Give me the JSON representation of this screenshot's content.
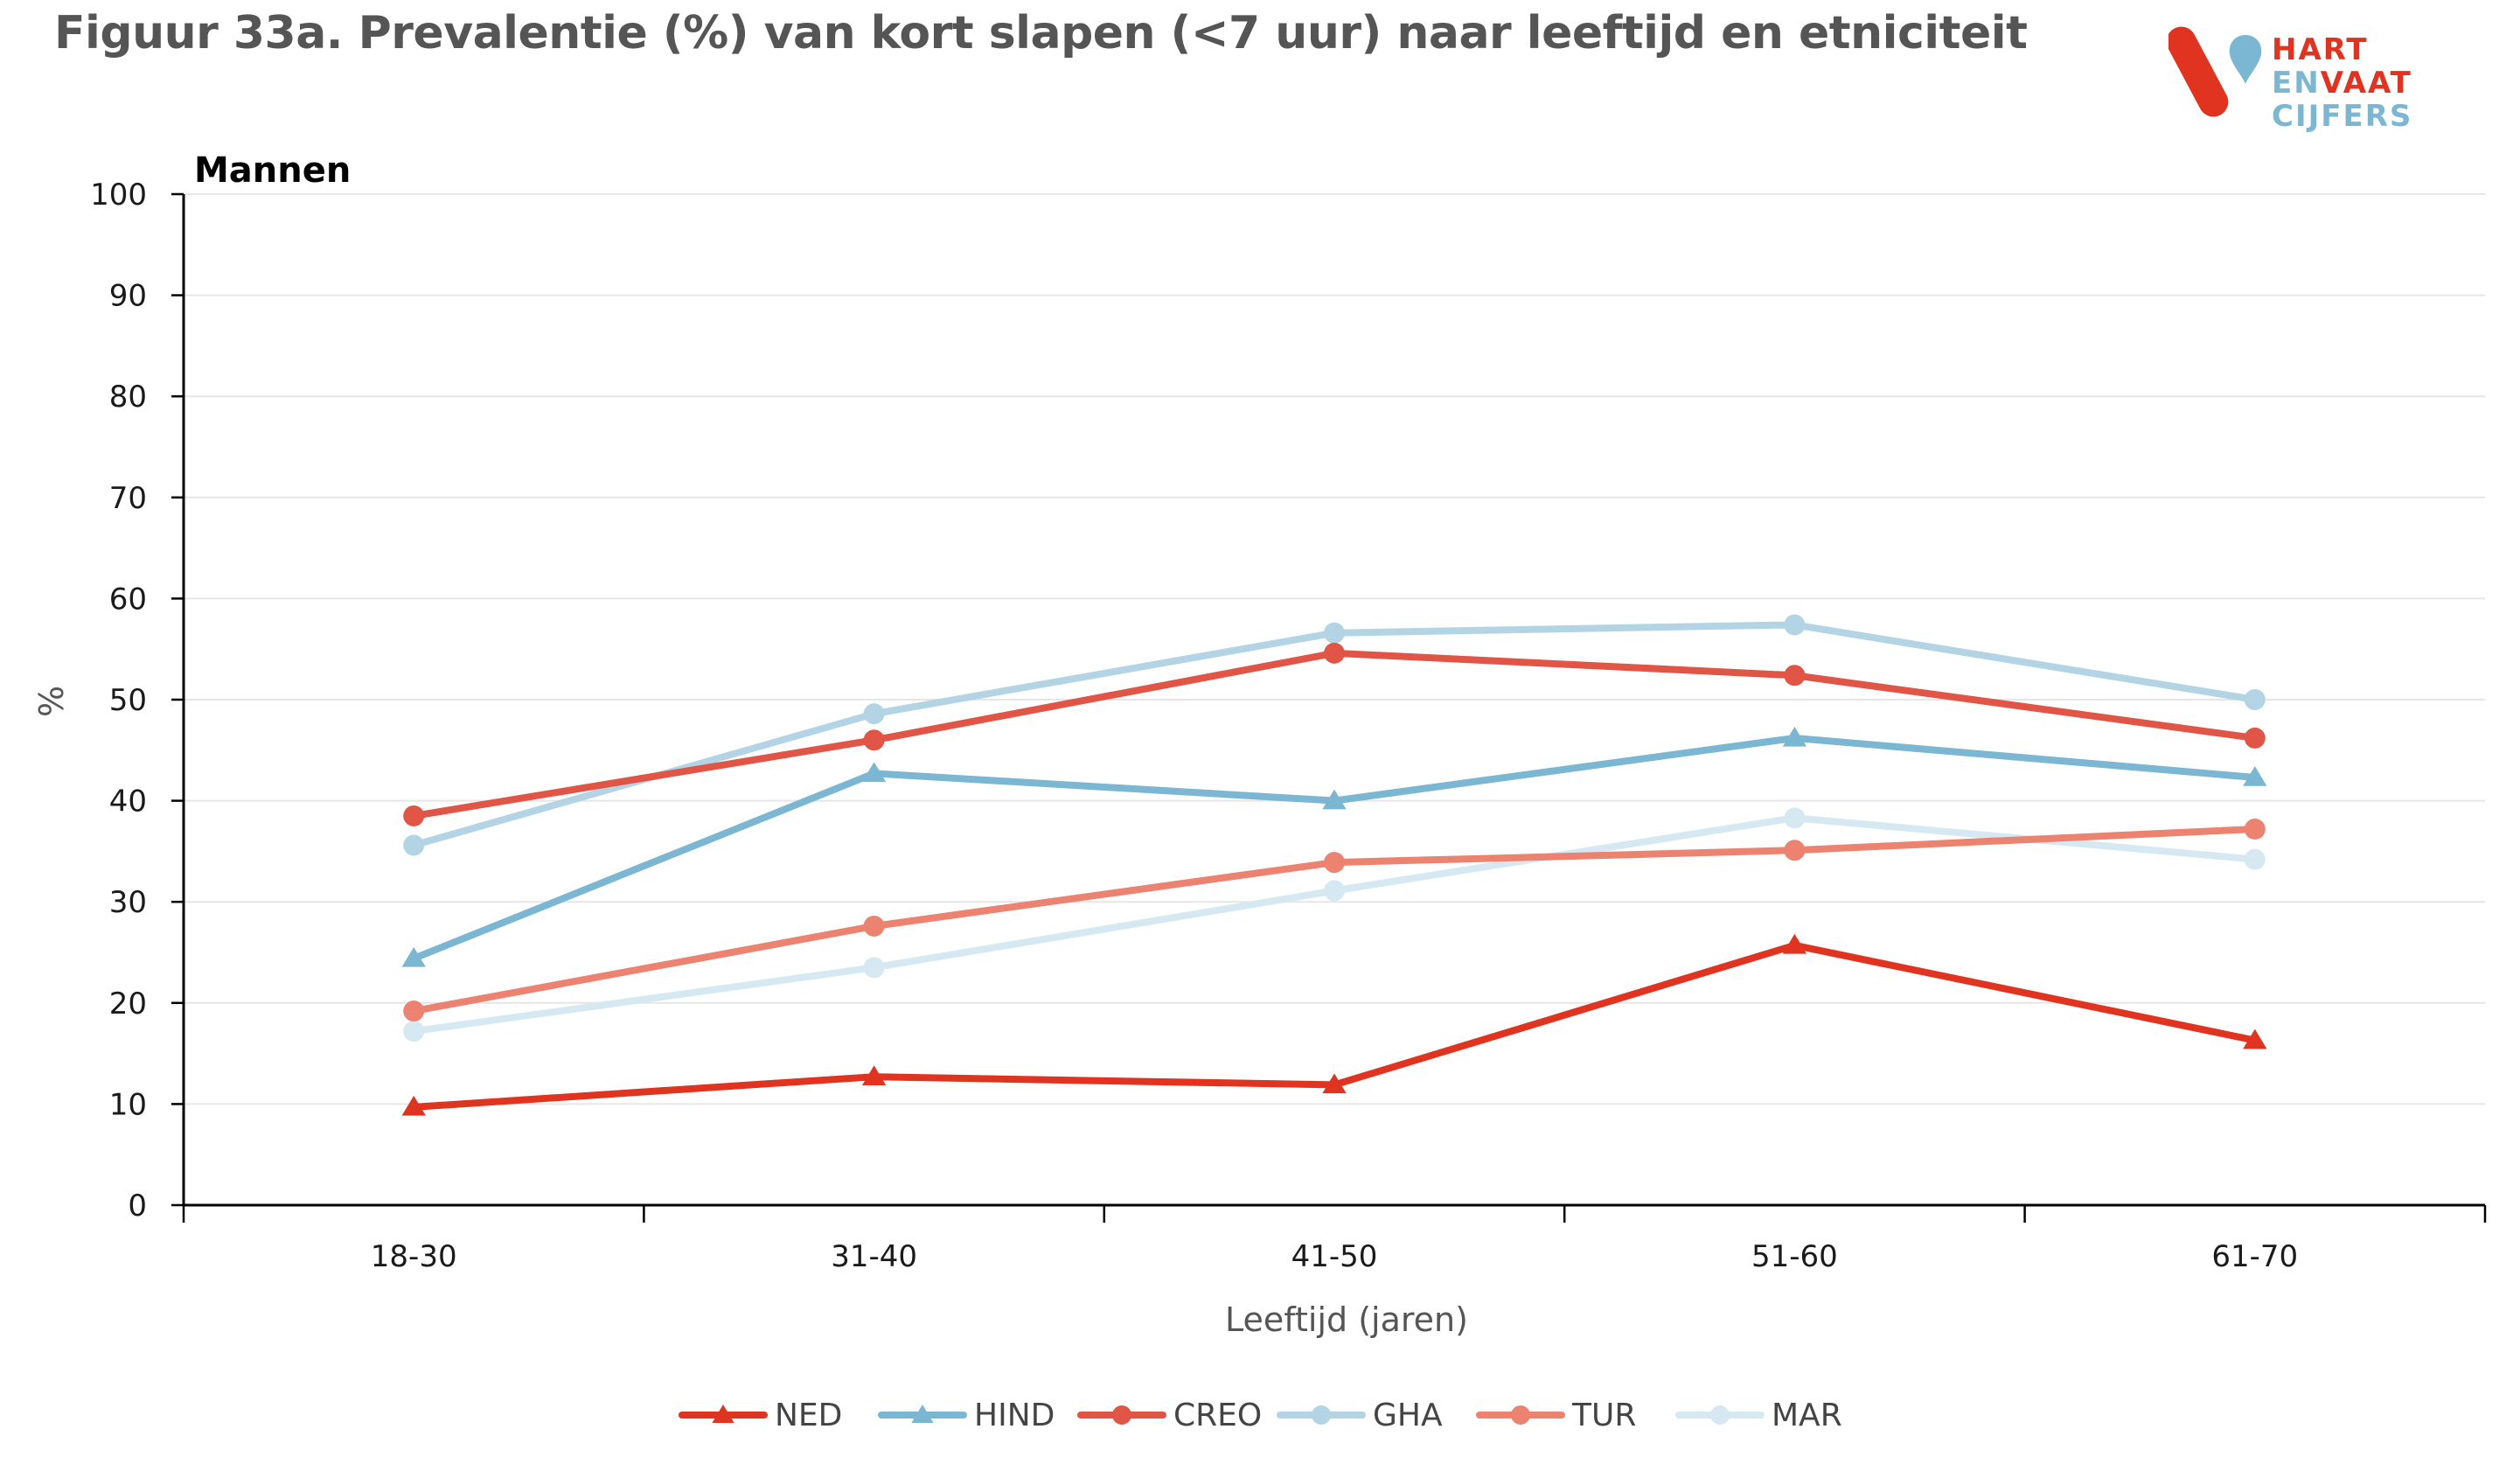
{
  "title": "Figuur 33a. Prevalentie (%) van kort slapen (<7 uur) naar leeftijd en etniciteit",
  "logo": {
    "line1": "HART",
    "line2a": "EN",
    "line2b": "VAAT",
    "line3": "CIJFERS"
  },
  "colors": {
    "red": "#e03320",
    "blue": "#7bb6d2",
    "grid": "#e6e6e6"
  },
  "chart_data": {
    "type": "line",
    "panel_label": "Mannen",
    "categories": [
      "18-30",
      "31-40",
      "41-50",
      "51-60",
      "61-70"
    ],
    "xlabel": "Leeftijd (jaren)",
    "ylabel": "%",
    "ylim": [
      0,
      100
    ],
    "yticks": [
      0,
      10,
      20,
      30,
      40,
      50,
      60,
      70,
      80,
      90,
      100
    ],
    "grid": true,
    "legend_position": "bottom",
    "series": [
      {
        "name": "NED",
        "color": "#e03320",
        "marker": "triangle",
        "values": [
          9.7,
          12.7,
          11.9,
          25.7,
          16.3
        ]
      },
      {
        "name": "HIND",
        "color": "#7bb6d2",
        "marker": "triangle",
        "values": [
          24.4,
          42.7,
          40.0,
          46.2,
          42.3
        ]
      },
      {
        "name": "CREO",
        "color": "#e05545",
        "marker": "circle",
        "values": [
          38.5,
          46.0,
          54.6,
          52.4,
          46.2
        ]
      },
      {
        "name": "GHA",
        "color": "#b3d4e4",
        "marker": "circle",
        "values": [
          35.6,
          48.6,
          56.6,
          57.4,
          50.0
        ]
      },
      {
        "name": "TUR",
        "color": "#ec8270",
        "marker": "circle",
        "values": [
          19.2,
          27.6,
          33.9,
          35.1,
          37.2
        ]
      },
      {
        "name": "MAR",
        "color": "#d6e8f1",
        "marker": "circle",
        "values": [
          17.2,
          23.5,
          31.1,
          38.3,
          34.2
        ]
      }
    ]
  }
}
